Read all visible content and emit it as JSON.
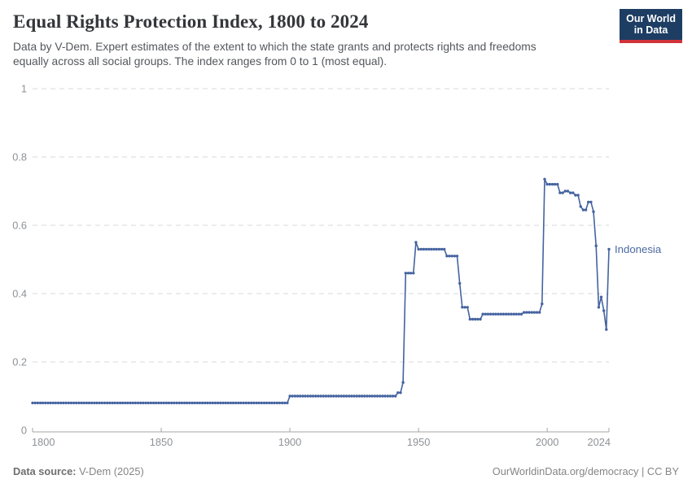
{
  "header": {
    "title": "Equal Rights Protection Index, 1800 to 2024",
    "subtitle_line1": "Data by V-Dem. Expert estimates of the extent to which the state grants and protects rights and freedoms",
    "subtitle_line2": "equally across all social groups. The index ranges from 0 to 1 (most equal).",
    "logo": {
      "line1": "Our World",
      "line2": "in Data",
      "bg_color": "#1d3d63",
      "accent_color": "#d13239"
    }
  },
  "chart_data": {
    "type": "line",
    "title": "Equal Rights Protection Index, 1800 to 2024",
    "xlabel": "",
    "ylabel": "",
    "xlim": [
      1800,
      2024
    ],
    "ylim": [
      0,
      1
    ],
    "xticks": [
      1800,
      1850,
      1900,
      1950,
      2000,
      2024
    ],
    "yticks": [
      0,
      0.2,
      0.4,
      0.6,
      0.8,
      1
    ],
    "grid": "horizontal-dashed",
    "legend_position": "end-of-line-label",
    "marker_style": "small-dot-every-year",
    "colors": {
      "gridline": "#d9d9d9",
      "axis": "#a5a5a5",
      "tick_label": "#8e9297"
    },
    "series": [
      {
        "name": "Indonesia",
        "color": "#4463a0",
        "label_color": "#4c69a2",
        "year_ranges_with_value": [
          [
            1800,
            1899,
            0.08
          ],
          [
            1900,
            1941,
            0.1
          ],
          [
            1942,
            1943,
            0.11
          ],
          [
            1944,
            1944,
            0.14
          ],
          [
            1945,
            1948,
            0.46
          ],
          [
            1949,
            1949,
            0.55
          ],
          [
            1950,
            1960,
            0.53
          ],
          [
            1961,
            1965,
            0.51
          ],
          [
            1966,
            1966,
            0.43
          ],
          [
            1967,
            1969,
            0.36
          ],
          [
            1970,
            1974,
            0.325
          ],
          [
            1975,
            1990,
            0.34
          ],
          [
            1991,
            1997,
            0.345
          ],
          [
            1998,
            1998,
            0.37
          ],
          [
            1999,
            1999,
            0.735
          ],
          [
            2000,
            2004,
            0.72
          ],
          [
            2005,
            2006,
            0.695
          ],
          [
            2007,
            2008,
            0.7
          ],
          [
            2009,
            2010,
            0.695
          ],
          [
            2011,
            2012,
            0.688
          ],
          [
            2013,
            2013,
            0.655
          ],
          [
            2014,
            2015,
            0.645
          ],
          [
            2016,
            2017,
            0.668
          ],
          [
            2018,
            2018,
            0.64
          ],
          [
            2019,
            2019,
            0.54
          ],
          [
            2020,
            2020,
            0.36
          ],
          [
            2021,
            2021,
            0.39
          ],
          [
            2022,
            2022,
            0.35
          ],
          [
            2023,
            2023,
            0.295
          ],
          [
            2024,
            2024,
            0.53
          ]
        ]
      }
    ]
  },
  "footer": {
    "source_label": "Data source:",
    "source_value": " V-Dem (2025)",
    "url": "OurWorldinData.org/democracy",
    "separator": " | ",
    "license": "CC BY"
  }
}
